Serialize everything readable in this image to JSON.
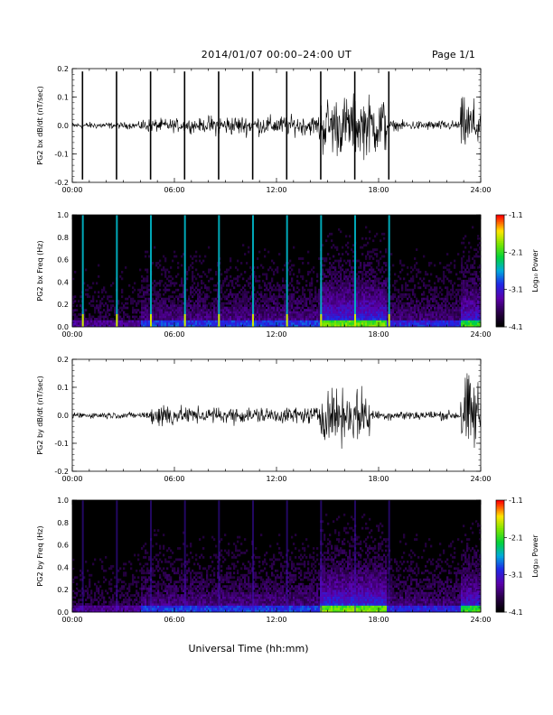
{
  "page": {
    "title": "2014/01/07  00:00–24:00 UT",
    "page_label": "Page 1/1",
    "x_title": "Universal Time (hh:mm)"
  },
  "chart_data": [
    {
      "type": "line",
      "ylabel": "PG2 bx dB/dt (nT/sec)",
      "xlim": [
        0,
        24
      ],
      "ylim": [
        -0.2,
        0.2
      ],
      "x_ticks": [
        "00:00",
        "06:00",
        "12:00",
        "18:00",
        "24:00"
      ],
      "y_ticks": [
        "-0.2",
        "-0.1",
        "0.0",
        "0.1",
        "0.2"
      ],
      "spike_times_h": [
        0.6,
        2.6,
        4.6,
        6.6,
        8.6,
        10.6,
        12.6,
        14.6,
        16.6,
        18.6
      ],
      "activity_envelope": [
        {
          "start": 0,
          "end": 4,
          "amplitude": 0.01
        },
        {
          "start": 4,
          "end": 8,
          "amplitude": 0.02
        },
        {
          "start": 8,
          "end": 14.5,
          "amplitude": 0.03
        },
        {
          "start": 14.5,
          "end": 18.5,
          "amplitude": 0.09
        },
        {
          "start": 18.5,
          "end": 22.8,
          "amplitude": 0.015
        },
        {
          "start": 22.8,
          "end": 24,
          "amplitude": 0.08
        }
      ]
    },
    {
      "type": "heatmap",
      "ylabel": "PG2 bx Freq (Hz)",
      "xlim": [
        0,
        24
      ],
      "ylim": [
        0.0,
        1.0
      ],
      "x_ticks": [
        "00:00",
        "06:00",
        "12:00",
        "18:00",
        "24:00"
      ],
      "y_ticks": [
        "0.0",
        "0.2",
        "0.4",
        "0.6",
        "0.8",
        "1.0"
      ],
      "colorbar_label": "Log₁₀ Power",
      "colorbar_ticks": [
        "-1.1",
        "-2.1",
        "-3.1",
        "-4.1"
      ],
      "color_range": [
        -4.1,
        -1.1
      ]
    },
    {
      "type": "line",
      "ylabel": "PG2 by dB/dt (nT/sec)",
      "xlim": [
        0,
        24
      ],
      "ylim": [
        -0.2,
        0.2
      ],
      "x_ticks": [
        "00:00",
        "06:00",
        "12:00",
        "18:00",
        "24:00"
      ],
      "y_ticks": [
        "-0.2",
        "-0.1",
        "0.0",
        "0.1",
        "0.2"
      ],
      "activity_envelope": [
        {
          "start": 0,
          "end": 4.5,
          "amplitude": 0.01
        },
        {
          "start": 4.5,
          "end": 6,
          "amplitude": 0.04
        },
        {
          "start": 6,
          "end": 14.5,
          "amplitude": 0.025
        },
        {
          "start": 14.5,
          "end": 17.5,
          "amplitude": 0.08
        },
        {
          "start": 17.5,
          "end": 22.8,
          "amplitude": 0.015
        },
        {
          "start": 22.8,
          "end": 24,
          "amplitude": 0.12
        }
      ]
    },
    {
      "type": "heatmap",
      "ylabel": "PG2 by Freq (Hz)",
      "xlim": [
        0,
        24
      ],
      "ylim": [
        0.0,
        1.0
      ],
      "x_ticks": [
        "00:00",
        "06:00",
        "12:00",
        "18:00",
        "24:00"
      ],
      "y_ticks": [
        "0.0",
        "0.2",
        "0.4",
        "0.6",
        "0.8",
        "1.0"
      ],
      "colorbar_label": "Log₁₀ Power",
      "colorbar_ticks": [
        "-1.1",
        "-2.1",
        "-3.1",
        "-4.1"
      ],
      "color_range": [
        -4.1,
        -1.1
      ]
    }
  ]
}
